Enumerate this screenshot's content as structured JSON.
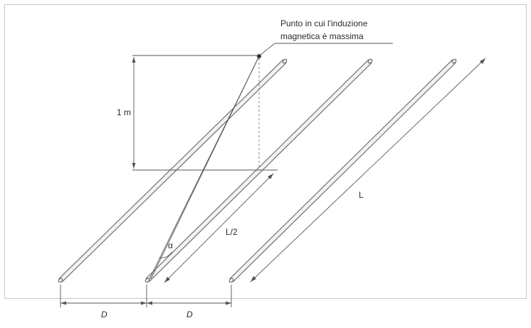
{
  "annotation": {
    "line1": "Punto in cui l'induzione",
    "line2": "magnetica è massima"
  },
  "labels": {
    "height": "1 m",
    "length": "L",
    "half_length": "L/2",
    "angle": "α",
    "spacing_left": "D",
    "spacing_right": "D"
  },
  "colors": {
    "background": "#ffffff",
    "frame": "#c8c8c8",
    "lines": "#555555",
    "point": "#333333"
  }
}
